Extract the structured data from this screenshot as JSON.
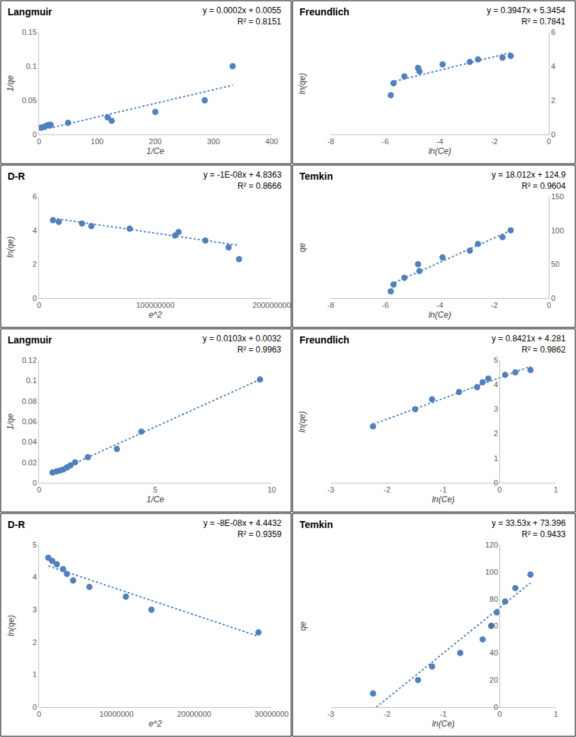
{
  "chart_data": [
    {
      "type": "scatter",
      "title": "Langmuir",
      "equation": "y = 0.0002x + 0.0055",
      "r2_label": "R² = 0.8151",
      "fit": {
        "slope": 0.0002,
        "intercept": 0.0055
      },
      "x_label": "1/Ce",
      "y_label": "1/qe",
      "x": [
        3,
        8,
        13,
        17,
        20,
        50,
        118,
        125,
        200,
        285,
        333
      ],
      "y": [
        0.01,
        0.011,
        0.013,
        0.014,
        0.014,
        0.017,
        0.025,
        0.02,
        0.033,
        0.05,
        0.1
      ],
      "xlim": [
        0,
        400
      ],
      "ylim": [
        0,
        0.15
      ],
      "xticks": [
        0,
        100,
        200,
        300,
        400
      ],
      "yticks": [
        0,
        0.05,
        0.1,
        0.15
      ],
      "color": "#4f81bd",
      "marker": "circle",
      "line_style": "dot"
    },
    {
      "type": "scatter",
      "title": "Freundlich",
      "equation": "y = 0.3947x + 5.3454",
      "r2_label": "R² = 0.7841",
      "fit": {
        "slope": 0.3947,
        "intercept": 5.3454
      },
      "x_label": "ln(Ce)",
      "y_label": "ln(qe)",
      "x": [
        -5.8,
        -5.7,
        -5.3,
        -4.8,
        -4.75,
        -3.9,
        -2.9,
        -2.6,
        -1.7,
        -1.4
      ],
      "y": [
        2.3,
        3.0,
        3.4,
        3.9,
        3.7,
        4.1,
        4.25,
        4.4,
        4.5,
        4.6
      ],
      "xlim": [
        -8,
        0
      ],
      "ylim": [
        0,
        6
      ],
      "xticks": [
        -8,
        -6,
        -4,
        -2,
        0
      ],
      "yticks": [
        0,
        2,
        4,
        6
      ],
      "color": "#4f81bd",
      "marker": "circle",
      "line_style": "dot"
    },
    {
      "type": "scatter",
      "title": "D-R",
      "equation": "y = -1E-08x + 4.8363",
      "r2_label": "R² = 0.8666",
      "fit": {
        "slope": -1e-08,
        "intercept": 4.8363
      },
      "x_label": "e^2",
      "y_label": "ln(qe)",
      "x": [
        12000000,
        17000000,
        37000000,
        45000000,
        78000000,
        117000000,
        120000000,
        143000000,
        163000000,
        172000000
      ],
      "y": [
        4.6,
        4.5,
        4.4,
        4.25,
        4.1,
        3.7,
        3.9,
        3.4,
        3.0,
        2.3
      ],
      "xlim": [
        0,
        200000000
      ],
      "ylim": [
        0,
        6
      ],
      "xticks": [
        0,
        100000000,
        200000000
      ],
      "yticks": [
        0,
        2,
        4,
        6
      ],
      "color": "#4f81bd",
      "marker": "circle",
      "line_style": "dot"
    },
    {
      "type": "scatter",
      "title": "Temkin",
      "equation": "y = 18.012x + 124.9",
      "r2_label": "R² = 0.9604",
      "fit": {
        "slope": 18.012,
        "intercept": 124.9
      },
      "x_label": "ln(Ce)",
      "y_label": "qe",
      "x": [
        -5.8,
        -5.7,
        -5.3,
        -4.8,
        -4.75,
        -3.9,
        -2.9,
        -2.6,
        -1.7,
        -1.4
      ],
      "y": [
        10,
        20,
        30,
        50,
        40,
        60,
        70,
        80,
        90,
        100
      ],
      "xlim": [
        -8,
        0
      ],
      "ylim": [
        0,
        150
      ],
      "xticks": [
        -8,
        -6,
        -4,
        -2,
        0
      ],
      "yticks": [
        0,
        50,
        100,
        150
      ],
      "color": "#4f81bd",
      "marker": "circle",
      "line_style": "dot"
    },
    {
      "type": "scatter",
      "title": "Langmuir",
      "equation": "y = 0.0103x + 0.0032",
      "r2_label": "R² = 0.9963",
      "fit": {
        "slope": 0.0103,
        "intercept": 0.0032
      },
      "x_label": "1/Ce",
      "y_label": "1/qe",
      "x": [
        0.58,
        0.75,
        0.9,
        1.05,
        1.2,
        1.35,
        1.55,
        2.1,
        3.35,
        4.4,
        9.5
      ],
      "y": [
        0.01,
        0.011,
        0.012,
        0.013,
        0.015,
        0.017,
        0.02,
        0.025,
        0.033,
        0.05,
        0.101
      ],
      "xlim": [
        0,
        10
      ],
      "ylim": [
        0,
        0.12
      ],
      "xticks": [
        0,
        5,
        10
      ],
      "yticks": [
        0,
        0.02,
        0.04,
        0.06,
        0.08,
        0.1,
        0.12
      ],
      "color": "#4f81bd",
      "marker": "circle",
      "line_style": "dot"
    },
    {
      "type": "scatter",
      "title": "Freundlich",
      "equation": "y = 0.8421x + 4.281",
      "r2_label": "R² = 0.9862",
      "fit": {
        "slope": 0.8421,
        "intercept": 4.281
      },
      "x_label": "ln(Ce)",
      "y_label": "ln(qe)",
      "x": [
        -2.25,
        -1.5,
        -1.2,
        -0.72,
        -0.4,
        -0.3,
        -0.2,
        0.1,
        0.28,
        0.55
      ],
      "y": [
        2.3,
        3.0,
        3.4,
        3.7,
        3.9,
        4.1,
        4.25,
        4.4,
        4.5,
        4.6
      ],
      "xlim": [
        -3,
        1
      ],
      "ylim": [
        0,
        5
      ],
      "xticks": [
        -3,
        -2,
        -1,
        0,
        1
      ],
      "yticks": [
        0,
        1,
        2,
        3,
        4,
        5
      ],
      "color": "#4f81bd",
      "marker": "circle",
      "line_style": "dot"
    },
    {
      "type": "scatter",
      "title": "D-R",
      "equation": "y = -8E-08x + 4.4432",
      "r2_label": "R² = 0.9359",
      "fit": {
        "slope": -8e-08,
        "intercept": 4.4432
      },
      "x_label": "e^2",
      "y_label": "ln(qe)",
      "x": [
        1200000,
        1700000,
        2300000,
        3100000,
        3600000,
        4400000,
        6500000,
        11200000,
        14500000,
        28300000
      ],
      "y": [
        4.6,
        4.5,
        4.4,
        4.25,
        4.1,
        3.9,
        3.7,
        3.4,
        3.0,
        2.3
      ],
      "xlim": [
        0,
        30000000
      ],
      "ylim": [
        0,
        5
      ],
      "xticks": [
        0,
        10000000,
        20000000,
        30000000
      ],
      "yticks": [
        0,
        1,
        2,
        3,
        4,
        5
      ],
      "color": "#4f81bd",
      "marker": "circle",
      "line_style": "dot"
    },
    {
      "type": "scatter",
      "title": "Temkin",
      "equation": "y = 33.53x + 73.396",
      "r2_label": "R² = 0.9433",
      "fit": {
        "slope": 33.53,
        "intercept": 73.396
      },
      "x_label": "ln(Ce)",
      "y_label": "qe",
      "x": [
        -2.25,
        -1.45,
        -1.2,
        -0.7,
        -0.3,
        -0.15,
        -0.05,
        0.1,
        0.28,
        0.55
      ],
      "y": [
        10,
        20,
        30,
        40,
        50,
        60,
        70,
        78,
        88,
        98
      ],
      "xlim": [
        -3,
        1
      ],
      "ylim": [
        0,
        120
      ],
      "xticks": [
        -3,
        -2,
        -1,
        0,
        1
      ],
      "yticks": [
        0,
        20,
        40,
        60,
        80,
        100,
        120
      ],
      "color": "#4f81bd",
      "marker": "circle",
      "line_style": "dot"
    }
  ]
}
